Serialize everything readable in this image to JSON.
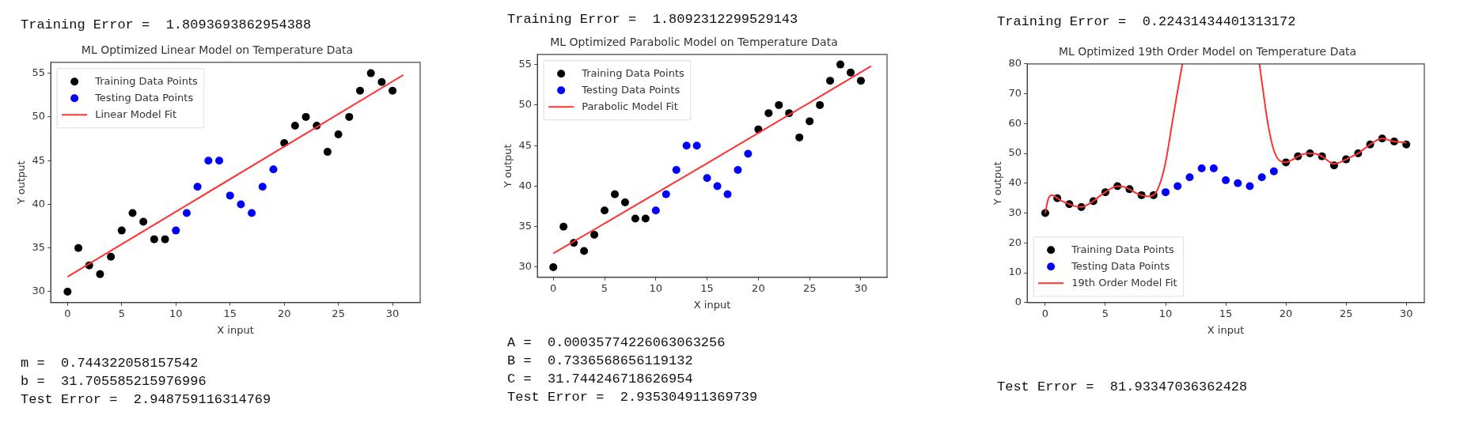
{
  "chart_data": [
    {
      "type": "scatter",
      "title": "ML Optimized Linear Model on Temperature Data",
      "xlabel": "X input",
      "ylabel": "Y output",
      "xlim": [
        -1.55,
        32.55
      ],
      "ylim": [
        28.75,
        56.25
      ],
      "xticks": [
        0,
        5,
        10,
        15,
        20,
        25,
        30
      ],
      "yticks": [
        30,
        35,
        40,
        45,
        50,
        55
      ],
      "grid": false,
      "legend": "top left",
      "marker": "circle",
      "annotations": [
        "Training Error =  1.8093693862954388",
        "m =  0.744322058157542",
        "b =  31.705585215976996",
        "Test Error =  2.948759116314769"
      ],
      "series": [
        {
          "name": "Training Data Points",
          "color": "#000000",
          "x": [
            0,
            1,
            2,
            3,
            4,
            5,
            6,
            7,
            8,
            9,
            20,
            21,
            22,
            23,
            24,
            25,
            26,
            27,
            28,
            29,
            30
          ],
          "values": [
            30,
            35,
            33,
            32,
            34,
            37,
            39,
            38,
            36,
            36,
            47,
            49,
            50,
            49,
            46,
            48,
            50,
            53,
            55,
            54,
            53
          ]
        },
        {
          "name": "Testing Data Points",
          "color": "#0000ff",
          "x": [
            10,
            11,
            12,
            13,
            14,
            15,
            16,
            17,
            18,
            19
          ],
          "values": [
            37,
            39,
            42,
            45,
            45,
            41,
            40,
            39,
            42,
            44
          ]
        },
        {
          "name": "Linear Model Fit",
          "type": "line",
          "marker": "none",
          "color": "#ff3030",
          "x": [
            0,
            31
          ],
          "values": [
            31.7,
            54.8
          ]
        }
      ]
    },
    {
      "type": "scatter",
      "title": "ML Optimized Parabolic Model on Temperature Data",
      "xlabel": "X input",
      "ylabel": "Y output",
      "xlim": [
        -1.55,
        32.55
      ],
      "ylim": [
        28.75,
        56.25
      ],
      "xticks": [
        0,
        5,
        10,
        15,
        20,
        25,
        30
      ],
      "yticks": [
        30,
        35,
        40,
        45,
        50,
        55
      ],
      "grid": false,
      "legend": "top left",
      "marker": "circle",
      "annotations": [
        "Training Error =  1.8092312299529143",
        "A =  0.00035774226063063256",
        "B =  0.7336568656119132",
        "C =  31.744246718626954",
        "Test Error =  2.935304911369739"
      ],
      "series": [
        {
          "name": "Training Data Points",
          "color": "#000000",
          "x": [
            0,
            1,
            2,
            3,
            4,
            5,
            6,
            7,
            8,
            9,
            20,
            21,
            22,
            23,
            24,
            25,
            26,
            27,
            28,
            29,
            30
          ],
          "values": [
            30,
            35,
            33,
            32,
            34,
            37,
            39,
            38,
            36,
            36,
            47,
            49,
            50,
            49,
            46,
            48,
            50,
            53,
            55,
            54,
            53
          ]
        },
        {
          "name": "Testing Data Points",
          "color": "#0000ff",
          "x": [
            10,
            11,
            12,
            13,
            14,
            15,
            16,
            17,
            18,
            19
          ],
          "values": [
            37,
            39,
            42,
            45,
            45,
            41,
            40,
            39,
            42,
            44
          ]
        },
        {
          "name": "Parabolic Model Fit",
          "type": "line",
          "marker": "none",
          "color": "#ff3030",
          "x": [
            0,
            15,
            31
          ],
          "values": [
            31.7,
            42.8,
            54.8
          ]
        }
      ]
    },
    {
      "type": "scatter",
      "title": "ML Optimized 19th Order Model on Temperature Data",
      "xlabel": "X input",
      "ylabel": "Y output",
      "xlim": [
        -1.5,
        31.5
      ],
      "ylim": [
        0,
        80
      ],
      "xticks": [
        0,
        5,
        10,
        15,
        20,
        25,
        30
      ],
      "yticks": [
        0,
        10,
        20,
        30,
        40,
        50,
        60,
        70,
        80
      ],
      "grid": false,
      "legend": "bottom left",
      "marker": "circle",
      "annotations": [
        "Training Error =  0.22431434401313172",
        "Test Error =  81.93347036362428"
      ],
      "series": [
        {
          "name": "Training Data Points",
          "color": "#000000",
          "x": [
            0,
            1,
            2,
            3,
            4,
            5,
            6,
            7,
            8,
            9,
            20,
            21,
            22,
            23,
            24,
            25,
            26,
            27,
            28,
            29,
            30
          ],
          "values": [
            30,
            35,
            33,
            32,
            34,
            37,
            39,
            38,
            36,
            36,
            47,
            49,
            50,
            49,
            46,
            48,
            50,
            53,
            55,
            54,
            53
          ]
        },
        {
          "name": "Testing Data Points",
          "color": "#0000ff",
          "x": [
            10,
            11,
            12,
            13,
            14,
            15,
            16,
            17,
            18,
            19
          ],
          "values": [
            37,
            39,
            42,
            45,
            45,
            41,
            40,
            39,
            42,
            44
          ]
        },
        {
          "name": "19th Order Model Fit",
          "type": "line",
          "marker": "none",
          "color": "#ff3030",
          "x": [
            0,
            0.2,
            0.4,
            0.6,
            1,
            1.5,
            2,
            2.5,
            3,
            3.5,
            4,
            4.5,
            5,
            5.5,
            6,
            6.5,
            7,
            7.5,
            8,
            8.5,
            9,
            9.5,
            10,
            10.5,
            11,
            11.4,
            14.6,
            17.8,
            18,
            18.5,
            19,
            19.5,
            20,
            20.5,
            21,
            21.5,
            22,
            22.5,
            23,
            23.5,
            24,
            24.5,
            25,
            25.5,
            26,
            26.5,
            27,
            27.5,
            28,
            28.5,
            29,
            29.5,
            30
          ],
          "values": [
            30,
            34,
            35.8,
            36,
            35,
            33.8,
            33,
            32.3,
            32,
            32.8,
            34,
            35.6,
            37,
            38.3,
            39,
            38.8,
            38,
            36.8,
            36,
            35.6,
            36,
            39.5,
            47,
            59,
            71,
            80,
            null,
            80,
            74,
            60,
            51,
            47.5,
            47,
            47.8,
            49,
            49.8,
            50,
            49.8,
            49,
            47.5,
            46.5,
            47,
            48,
            49,
            50,
            51.5,
            53,
            54.3,
            55,
            54.5,
            54,
            53.8,
            53.6
          ]
        }
      ]
    }
  ]
}
